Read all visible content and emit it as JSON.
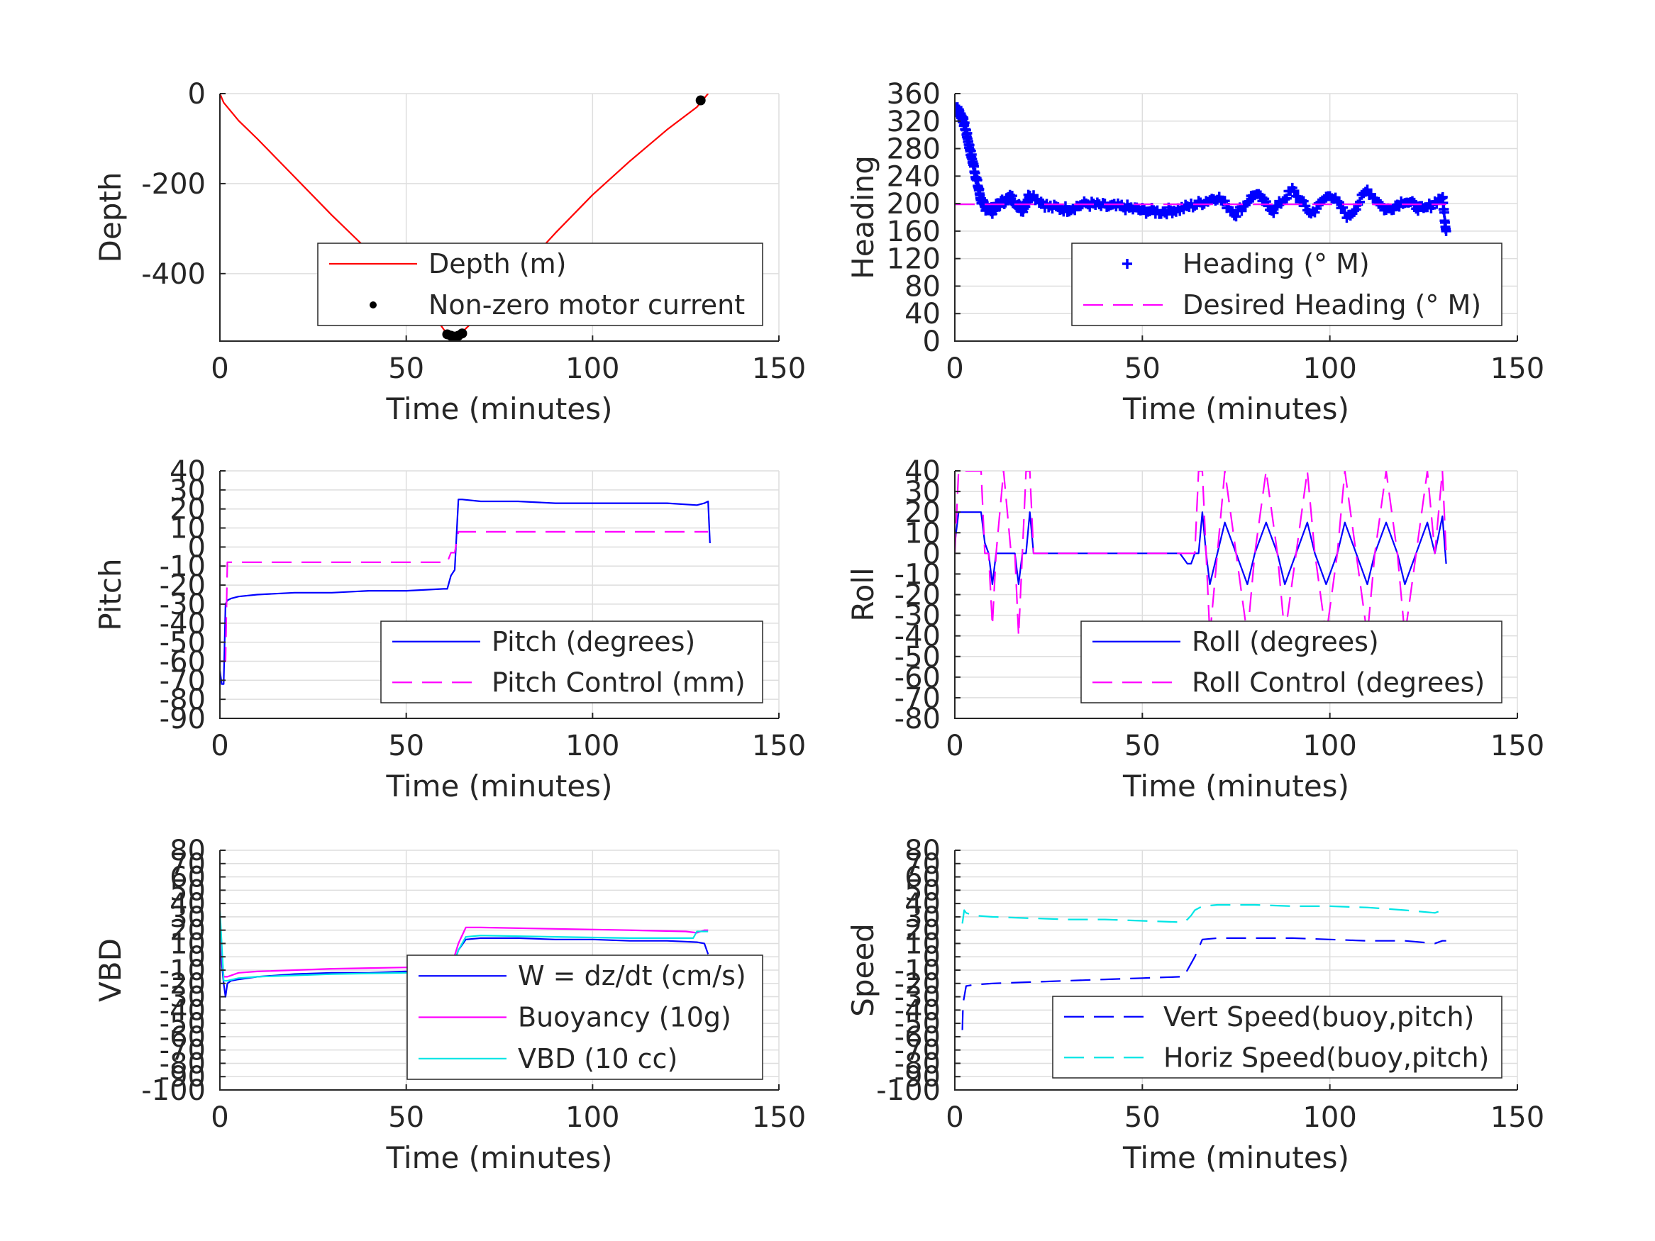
{
  "chart_data": [
    {
      "type": "line",
      "xlabel": "Time (minutes)",
      "ylabel": "Depth",
      "xlim": [
        0,
        150
      ],
      "ylim": [
        -550,
        0
      ],
      "xticks": [
        0,
        50,
        100,
        150
      ],
      "yticks": [
        0,
        -200,
        -400
      ],
      "legend_position": "bottom-right",
      "series": [
        {
          "name": "Depth (m)",
          "color": "#ff0000",
          "style": "solid",
          "x": [
            0,
            1,
            5,
            10,
            20,
            30,
            40,
            50,
            58,
            61,
            63,
            65,
            70,
            80,
            90,
            100,
            110,
            120,
            128,
            131
          ],
          "y": [
            0,
            -20,
            -60,
            -100,
            -185,
            -270,
            -350,
            -430,
            -500,
            -535,
            -540,
            -530,
            -490,
            -400,
            -310,
            -225,
            -150,
            -80,
            -30,
            0
          ]
        },
        {
          "name": "Non-zero motor current",
          "color": "#000000",
          "style": "dots",
          "x": [
            61,
            62,
            63,
            64,
            65,
            129
          ],
          "y": [
            -535,
            -538,
            -540,
            -538,
            -533,
            -15
          ]
        }
      ]
    },
    {
      "type": "line",
      "xlabel": "Time (minutes)",
      "ylabel": "Heading",
      "xlim": [
        0,
        150
      ],
      "ylim": [
        0,
        360
      ],
      "xticks": [
        0,
        50,
        100,
        150
      ],
      "yticks": [
        0,
        40,
        80,
        120,
        160,
        200,
        240,
        280,
        320,
        360
      ],
      "legend_position": "bottom-right",
      "series": [
        {
          "name": "Heading (° M)",
          "color": "#0000ff",
          "style": "plus",
          "x": [
            0,
            1,
            2,
            3,
            4,
            5,
            6,
            7,
            8,
            10,
            12,
            15,
            18,
            20,
            25,
            30,
            35,
            40,
            45,
            50,
            55,
            60,
            65,
            70,
            75,
            80,
            85,
            90,
            95,
            100,
            105,
            110,
            115,
            120,
            125,
            130,
            131
          ],
          "y": [
            340,
            335,
            325,
            305,
            280,
            255,
            230,
            205,
            195,
            190,
            200,
            210,
            190,
            215,
            195,
            192,
            200,
            196,
            195,
            190,
            188,
            192,
            200,
            210,
            185,
            215,
            190,
            220,
            185,
            215,
            180,
            220,
            190,
            205,
            190,
            210,
            160
          ]
        },
        {
          "name": "Desired Heading (° M)",
          "color": "#ff00ff",
          "style": "dashed",
          "x": [
            0,
            131
          ],
          "y": [
            199,
            199
          ]
        }
      ]
    },
    {
      "type": "line",
      "xlabel": "Time (minutes)",
      "ylabel": "Pitch",
      "xlim": [
        0,
        150
      ],
      "ylim": [
        -90,
        40
      ],
      "xticks": [
        0,
        50,
        100,
        150
      ],
      "yticks": [
        -90,
        -80,
        -70,
        -60,
        -50,
        -40,
        -30,
        -20,
        -10,
        0,
        10,
        20,
        30,
        40
      ],
      "legend_position": "bottom-right",
      "series": [
        {
          "name": "Pitch (degrees)",
          "color": "#0000ff",
          "style": "solid",
          "x": [
            0,
            0.5,
            1,
            1.5,
            2,
            3,
            5,
            10,
            20,
            30,
            40,
            50,
            60,
            61,
            62,
            63,
            64,
            65,
            70,
            80,
            90,
            100,
            110,
            120,
            128,
            130,
            131,
            131.5
          ],
          "y": [
            -65,
            -72,
            -72,
            -30,
            -28,
            -27,
            -26,
            -25,
            -24,
            -24,
            -23,
            -23,
            -22,
            -22,
            -15,
            -12,
            25,
            25,
            24,
            24,
            23,
            23,
            23,
            23,
            22,
            23,
            24,
            2
          ]
        },
        {
          "name": "Pitch Control (mm)",
          "color": "#ff00ff",
          "style": "dashed",
          "x": [
            0,
            1.5,
            2,
            5,
            20,
            40,
            60,
            61,
            62,
            63,
            64,
            65,
            70,
            90,
            110,
            131
          ],
          "y": [
            -60,
            -60,
            -8,
            -8,
            -8,
            -8,
            -8,
            -8,
            -3,
            -3,
            8,
            8,
            8,
            8,
            8,
            8
          ]
        }
      ]
    },
    {
      "type": "line",
      "xlabel": "Time (minutes)",
      "ylabel": "Roll",
      "xlim": [
        0,
        150
      ],
      "ylim": [
        -80,
        40
      ],
      "xticks": [
        0,
        50,
        100,
        150
      ],
      "yticks": [
        -80,
        -70,
        -60,
        -50,
        -40,
        -30,
        -20,
        -10,
        0,
        10,
        20,
        30,
        40
      ],
      "legend_position": "bottom-right",
      "series": [
        {
          "name": "Roll (degrees)",
          "color": "#0000ff",
          "style": "solid",
          "x": [
            0,
            1,
            2,
            5,
            7,
            8,
            9,
            10,
            11,
            14,
            16,
            17,
            18,
            19,
            20,
            21,
            30,
            40,
            50,
            60,
            62,
            63,
            64,
            65,
            66,
            67,
            68,
            70,
            72,
            75,
            78,
            80,
            83,
            86,
            88,
            91,
            94,
            96,
            99,
            102,
            104,
            107,
            110,
            112,
            115,
            118,
            120,
            123,
            126,
            128,
            130,
            131
          ],
          "y": [
            5,
            20,
            20,
            20,
            20,
            5,
            0,
            -15,
            0,
            0,
            0,
            -15,
            0,
            0,
            20,
            0,
            0,
            0,
            0,
            0,
            -5,
            -5,
            0,
            0,
            20,
            0,
            -15,
            0,
            15,
            0,
            -15,
            0,
            15,
            0,
            -15,
            0,
            15,
            0,
            -15,
            0,
            15,
            0,
            -15,
            0,
            15,
            0,
            -15,
            0,
            15,
            0,
            18,
            -5
          ]
        },
        {
          "name": "Roll Control (degrees)",
          "color": "#ff00ff",
          "style": "dashed",
          "x": [
            0,
            1,
            2,
            4,
            6,
            7,
            8,
            9,
            10,
            11,
            13,
            15,
            16,
            17,
            18,
            19,
            20,
            21,
            30,
            40,
            50,
            60,
            63,
            64,
            65,
            66,
            67,
            68,
            70,
            72,
            75,
            78,
            80,
            83,
            86,
            88,
            91,
            94,
            96,
            99,
            102,
            104,
            107,
            110,
            112,
            115,
            118,
            120,
            123,
            126,
            128,
            130,
            131
          ],
          "y": [
            0,
            40,
            40,
            40,
            40,
            40,
            0,
            0,
            -35,
            0,
            40,
            0,
            0,
            -40,
            0,
            40,
            40,
            0,
            0,
            0,
            0,
            0,
            0,
            0,
            40,
            40,
            0,
            -40,
            0,
            40,
            0,
            -40,
            0,
            40,
            0,
            -40,
            0,
            40,
            0,
            -40,
            0,
            40,
            0,
            -40,
            0,
            40,
            0,
            -40,
            0,
            40,
            0,
            40,
            0
          ]
        }
      ]
    },
    {
      "type": "line",
      "xlabel": "Time (minutes)",
      "ylabel": "VBD",
      "xlim": [
        0,
        150
      ],
      "ylim": [
        -100,
        80
      ],
      "xticks": [
        0,
        50,
        100,
        150
      ],
      "yticks": [
        -100,
        -90,
        -80,
        -70,
        -60,
        -50,
        -40,
        -30,
        -20,
        -10,
        0,
        10,
        20,
        30,
        40,
        50,
        60,
        70,
        80
      ],
      "legend_position": "bottom-right",
      "series": [
        {
          "name": "W = dz/dt (cm/s)",
          "color": "#0000ff",
          "style": "solid",
          "x": [
            0,
            0.5,
            1,
            1.5,
            2,
            3,
            5,
            10,
            20,
            30,
            40,
            50,
            60,
            62,
            64,
            66,
            70,
            80,
            90,
            100,
            110,
            120,
            128,
            130,
            131
          ],
          "y": [
            20,
            -5,
            -20,
            -30,
            -20,
            -18,
            -17,
            -15,
            -13,
            -12,
            -12,
            -11,
            -11,
            -11,
            5,
            13,
            14,
            14,
            13,
            13,
            12,
            12,
            11,
            10,
            2
          ]
        },
        {
          "name": "Buoyancy (10g)",
          "color": "#ff00ff",
          "style": "solid",
          "x": [
            0,
            1,
            2,
            5,
            10,
            30,
            50,
            60,
            62,
            64,
            66,
            70,
            90,
            110,
            125,
            128,
            130,
            131
          ],
          "y": [
            20,
            -15,
            -15,
            -12,
            -11,
            -9,
            -8,
            -8,
            -8,
            10,
            22,
            22,
            21,
            20,
            19,
            18,
            20,
            20
          ]
        },
        {
          "name": "VBD (10 cc)",
          "color": "#00e5e5",
          "style": "solid",
          "x": [
            0,
            1,
            2,
            5,
            10,
            30,
            50,
            60,
            62,
            64,
            66,
            70,
            90,
            110,
            125,
            127,
            128,
            130,
            131
          ],
          "y": [
            35,
            -18,
            -18,
            -16,
            -15,
            -13,
            -12,
            -12,
            -12,
            5,
            15,
            16,
            15,
            14,
            14,
            14,
            19,
            19,
            19
          ]
        }
      ]
    },
    {
      "type": "line",
      "xlabel": "Time (minutes)",
      "ylabel": "Speed",
      "xlim": [
        0,
        150
      ],
      "ylim": [
        -100,
        80
      ],
      "xticks": [
        0,
        50,
        100,
        150
      ],
      "yticks": [
        -100,
        -90,
        -80,
        -70,
        -60,
        -50,
        -40,
        -30,
        -20,
        -10,
        0,
        10,
        20,
        30,
        40,
        50,
        60,
        70,
        80
      ],
      "legend_position": "bottom-right",
      "series": [
        {
          "name": "Vert Speed(buoy,pitch)",
          "color": "#0000ff",
          "style": "dashed",
          "x": [
            2,
            2.2,
            3,
            5,
            10,
            20,
            30,
            40,
            50,
            60,
            61,
            62,
            63,
            64,
            66,
            70,
            80,
            90,
            100,
            110,
            120,
            128,
            130,
            131
          ],
          "y": [
            -55,
            -35,
            -22,
            -21,
            -20,
            -19,
            -18,
            -17,
            -16,
            -15,
            -15,
            -10,
            -5,
            0,
            13,
            14,
            14,
            14,
            13,
            12,
            12,
            10,
            12,
            12
          ]
        },
        {
          "name": "Horiz Speed(buoy,pitch)",
          "color": "#00e5e5",
          "style": "dashed",
          "x": [
            2,
            2.5,
            3,
            5,
            10,
            20,
            30,
            40,
            50,
            60,
            61,
            62,
            63,
            64,
            66,
            70,
            80,
            90,
            100,
            110,
            120,
            128,
            130,
            131
          ],
          "y": [
            25,
            35,
            33,
            31,
            30,
            29,
            28,
            28,
            27,
            26,
            26,
            28,
            31,
            35,
            38,
            39,
            39,
            38,
            38,
            37,
            35,
            33,
            35,
            35
          ]
        }
      ]
    }
  ]
}
